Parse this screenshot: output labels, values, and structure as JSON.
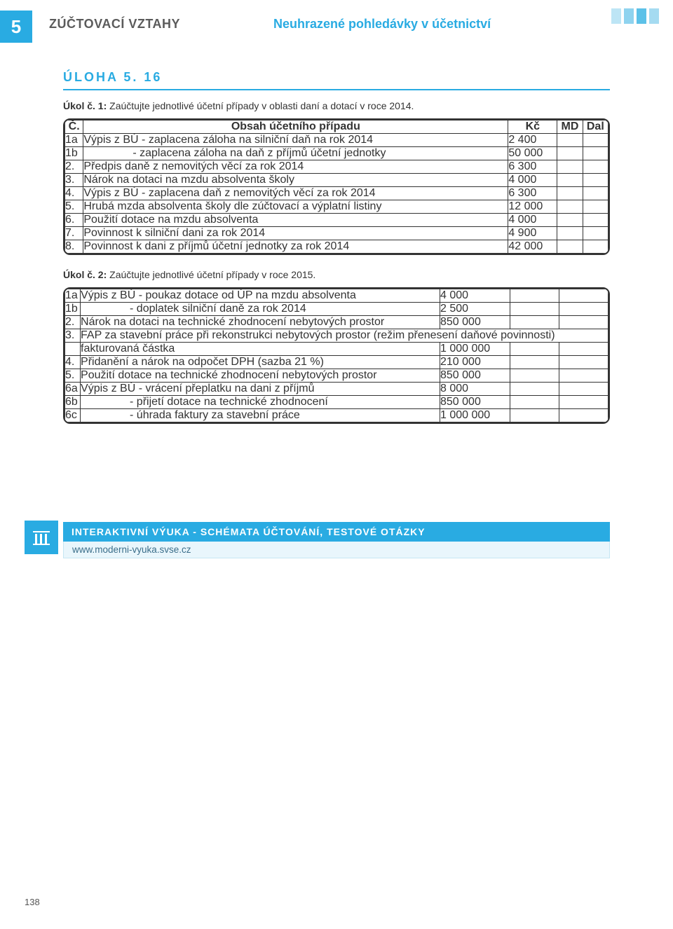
{
  "header": {
    "chapter_number": "5",
    "left_title": "ZÚČTOVACÍ VZTAHY",
    "right_title": "Neuhrazené pohledávky v účetnictví"
  },
  "section": {
    "label": "ÚLOHA  5. 16"
  },
  "task1": {
    "intro_bold": "Úkol č. 1:",
    "intro_rest": " Zaúčtujte jednotlivé účetní případy v oblasti daní a dotací v roce 2014.",
    "head": {
      "c": "Č.",
      "desc": "Obsah účetního případu",
      "kc": "Kč",
      "md": "MD",
      "dal": "Dal"
    },
    "rows": [
      {
        "n": "1a",
        "desc": "Výpis z BÚ - zaplacena záloha na silniční daň na rok 2014",
        "kc": "2 400"
      },
      {
        "n": "1b",
        "desc": "- zaplacena záloha na daň z příjmů účetní jednotky",
        "kc": "50 000",
        "indent": true
      },
      {
        "n": "2.",
        "desc": "Předpis daně z nemovitých věcí za rok 2014",
        "kc": "6 300"
      },
      {
        "n": "3.",
        "desc": "Nárok na dotaci na mzdu absolventa školy",
        "kc": "4 000"
      },
      {
        "n": "4.",
        "desc": "Výpis z BÚ - zaplacena daň z nemovitých věcí za rok 2014",
        "kc": "6 300"
      },
      {
        "n": "5.",
        "desc": "Hrubá mzda absolventa školy dle zúčtovací a výplatní listiny",
        "kc": "12 000"
      },
      {
        "n": "6.",
        "desc": "Použití dotace na mzdu absolventa",
        "kc": "4 000"
      },
      {
        "n": "7.",
        "desc": "Povinnost k silniční dani za rok 2014",
        "kc": "4 900"
      },
      {
        "n": "8.",
        "desc": "Povinnost k dani z příjmů účetní jednotky za rok 2014",
        "kc": "42 000"
      }
    ]
  },
  "task2": {
    "intro_bold": "Úkol č. 2:",
    "intro_rest": " Zaúčtujte jednotlivé účetní případy v roce 2015.",
    "rows": [
      {
        "n": "1a",
        "desc": "Výpis z BÚ - poukaz dotace od ÚP na mzdu absolventa",
        "kc": "4 000"
      },
      {
        "n": "1b",
        "desc": "- doplatek silniční daně za rok 2014",
        "kc": "2 500",
        "indent": true
      },
      {
        "n": "2.",
        "desc": "Nárok na dotaci na technické zhodnocení nebytových prostor",
        "kc": "850 000"
      },
      {
        "n": "3.",
        "desc": "FAP za stavební práce při rekonstrukci nebytových prostor (režim přenesení daňové povinnosti)",
        "kc": "",
        "span": true
      },
      {
        "n": "",
        "desc": "fakturovaná částka",
        "kc": "1 000 000"
      },
      {
        "n": "4.",
        "desc": "Přidanění a nárok na odpočet DPH (sazba 21 %)",
        "kc": "210 000"
      },
      {
        "n": "5.",
        "desc": "Použití dotace na technické zhodnocení nebytových prostor",
        "kc": "850 000"
      },
      {
        "n": "6a",
        "desc": "Výpis z BÚ - vrácení přeplatku na dani z příjmů",
        "kc": "8 000"
      },
      {
        "n": "6b",
        "desc": "- přijetí dotace na technické zhodnocení",
        "kc": "850 000",
        "indent": true
      },
      {
        "n": "6c",
        "desc": "- úhrada faktury za stavební práce",
        "kc": "1 000 000",
        "indent": true
      }
    ]
  },
  "footer": {
    "title": "INTERAKTIVNÍ VÝUKA - SCHÉMATA ÚČTOVÁNÍ, TESTOVÉ OTÁZKY",
    "link": "www.moderni-vyuka.svse.cz"
  },
  "page_number": "138",
  "colors": {
    "accent": "#29abe2",
    "text": "#333333",
    "footer_bg_light": "#e9f6fc"
  }
}
